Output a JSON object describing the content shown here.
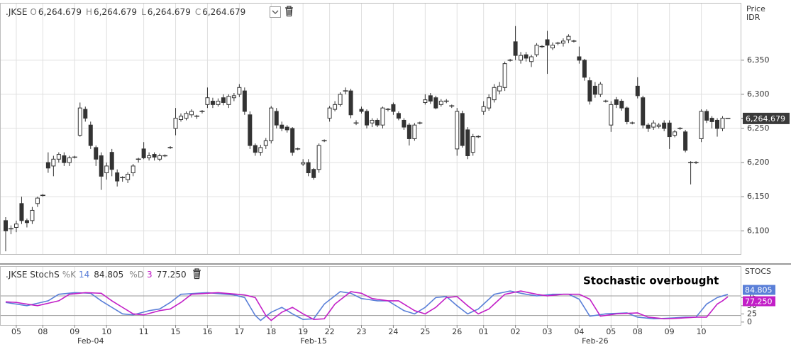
{
  "chart_data": [
    {
      "type": "candlestick",
      "header": {
        "symbol": ".JKSE",
        "fields": [
          {
            "key": "O",
            "value": "6,264.679"
          },
          {
            "key": "H",
            "value": "6,264.679"
          },
          {
            "key": "L",
            "value": "6,264.679"
          },
          {
            "key": "C",
            "value": "6,264.679"
          }
        ]
      },
      "y_axis_title": [
        "Price",
        "IDR"
      ],
      "categories": [
        null,
        null,
        "05",
        null,
        null,
        null,
        null,
        "08",
        null,
        null,
        null,
        null,
        null,
        "09",
        null,
        null,
        null,
        null,
        null,
        "10",
        null,
        null,
        null,
        null,
        null,
        null,
        "11",
        null,
        null,
        null,
        null,
        null,
        "15",
        null,
        null,
        null,
        null,
        null,
        "16",
        null,
        null,
        null,
        null,
        null,
        "17",
        null,
        null,
        null,
        null,
        null,
        "18",
        null,
        null,
        null,
        null,
        null,
        "19",
        null,
        null,
        null,
        null,
        "22",
        null,
        null,
        null,
        null,
        null,
        "23",
        null,
        null,
        null,
        null,
        null,
        "24",
        null,
        null,
        null,
        null,
        null,
        "25",
        null,
        null,
        null,
        null,
        null,
        "26",
        null,
        null,
        null,
        null,
        "01",
        null,
        null,
        null,
        null,
        null,
        "02",
        null,
        null,
        null,
        null,
        null,
        "03",
        null,
        null,
        null,
        null,
        null,
        "04",
        null,
        null,
        null,
        null,
        null,
        "05",
        null,
        null,
        null,
        null,
        "08",
        null,
        null,
        null,
        null,
        null,
        "09",
        null,
        null,
        null,
        null,
        null,
        "10",
        null,
        null,
        null,
        null,
        null
      ],
      "month_categories": [
        null,
        null,
        null,
        null,
        null,
        null,
        null,
        null,
        null,
        null,
        null,
        null,
        null,
        null,
        null,
        null,
        "Feb-04",
        null,
        null,
        null,
        null,
        null,
        null,
        null,
        null,
        null,
        null,
        null,
        null,
        null,
        null,
        null,
        null,
        null,
        null,
        null,
        null,
        null,
        null,
        null,
        null,
        null,
        null,
        null,
        null,
        null,
        null,
        null,
        null,
        null,
        null,
        null,
        null,
        null,
        null,
        null,
        null,
        null,
        "Feb-15",
        null,
        null,
        null,
        null,
        null,
        null,
        null,
        null,
        null,
        null,
        null,
        null,
        null,
        null,
        null,
        null,
        null,
        null,
        null,
        null,
        null,
        null,
        null,
        null,
        null,
        null,
        null,
        null,
        null,
        null,
        null,
        null,
        null,
        null,
        null,
        null,
        null,
        null,
        null,
        null,
        null,
        null,
        null,
        null,
        null,
        null,
        null,
        null,
        null,
        null,
        null,
        null,
        "Feb-26",
        null,
        null,
        null,
        null,
        null,
        null,
        null,
        null,
        null,
        null,
        null,
        null,
        null,
        null,
        null,
        null,
        null,
        null,
        null,
        null,
        null,
        null,
        null,
        null,
        null
      ],
      "open": [
        6115,
        6103,
        6105,
        6140,
        6115,
        6115,
        6140,
        6152,
        6200,
        6195,
        6205,
        6210,
        6200,
        6208,
        6240,
        6278,
        6255,
        6222,
        6210,
        6185,
        6215,
        6185,
        6178,
        6175,
        6185,
        6205,
        6220,
        6207,
        6212,
        6205,
        6210,
        6222,
        6250,
        6263,
        6265,
        6270,
        6268,
        6275,
        6285,
        6290,
        6285,
        6295,
        6285,
        6295,
        6300,
        6305,
        6270,
        6225,
        6215,
        6225,
        6232,
        6275,
        6255,
        6252,
        6250,
        6220,
        6198,
        6200,
        6190,
        6190,
        6232,
        6265,
        6278,
        6285,
        6305,
        6305,
        6258,
        6278,
        6275,
        6258,
        6262,
        6255,
        6278,
        6285,
        6272,
        6262,
        6255,
        6235,
        6258,
        6288,
        6298,
        6295,
        6285,
        6290,
        6283,
        6220,
        6272,
        6248,
        6215,
        6238,
        6275,
        6280,
        6292,
        6305,
        6310,
        6350,
        6377,
        6350,
        6358,
        6348,
        6358,
        6370,
        6380,
        6368,
        6375,
        6375,
        6380,
        6378,
        6355,
        6350,
        6320,
        6312,
        6300,
        6290,
        6255,
        6292,
        6290,
        6280,
        6258,
        6312,
        6295,
        6255,
        6252,
        6253,
        6258,
        6258,
        6240,
        6250,
        6245,
        6200,
        6200,
        6235,
        6275,
        6265,
        6262,
        6250,
        6264.679
      ],
      "high": [
        6120,
        6108,
        6115,
        6150,
        6118,
        6135,
        6150,
        6154,
        6215,
        6210,
        6215,
        6215,
        6210,
        6210,
        6288,
        6282,
        6260,
        6225,
        6215,
        6200,
        6220,
        6190,
        6180,
        6186,
        6198,
        6207,
        6230,
        6215,
        6215,
        6213,
        6212,
        6224,
        6280,
        6272,
        6275,
        6278,
        6270,
        6277,
        6310,
        6295,
        6294,
        6300,
        6300,
        6302,
        6315,
        6310,
        6275,
        6228,
        6226,
        6236,
        6283,
        6280,
        6260,
        6255,
        6252,
        6222,
        6205,
        6205,
        6192,
        6228,
        6234,
        6283,
        6290,
        6303,
        6310,
        6308,
        6262,
        6282,
        6278,
        6265,
        6265,
        6282,
        6280,
        6288,
        6275,
        6265,
        6258,
        6258,
        6260,
        6300,
        6302,
        6298,
        6293,
        6293,
        6285,
        6280,
        6276,
        6252,
        6242,
        6240,
        6290,
        6300,
        6315,
        6318,
        6348,
        6352,
        6400,
        6362,
        6362,
        6358,
        6375,
        6372,
        6393,
        6376,
        6377,
        6382,
        6388,
        6380,
        6370,
        6352,
        6325,
        6318,
        6318,
        6292,
        6290,
        6296,
        6293,
        6282,
        6260,
        6325,
        6298,
        6258,
        6262,
        6258,
        6262,
        6262,
        6248,
        6252,
        6248,
        6202,
        6202,
        6278,
        6278,
        6268,
        6265,
        6268,
        6264.679
      ],
      "low": [
        6070,
        6095,
        6098,
        6110,
        6105,
        6110,
        6135,
        6150,
        6185,
        6180,
        6200,
        6195,
        6195,
        6206,
        6238,
        6260,
        6220,
        6195,
        6160,
        6175,
        6180,
        6165,
        6172,
        6170,
        6180,
        6200,
        6205,
        6203,
        6203,
        6202,
        6208,
        6220,
        6240,
        6260,
        6262,
        6266,
        6264,
        6272,
        6280,
        6280,
        6282,
        6284,
        6280,
        6290,
        6296,
        6270,
        6220,
        6210,
        6210,
        6220,
        6228,
        6250,
        6246,
        6244,
        6210,
        6218,
        6195,
        6180,
        6175,
        6185,
        6230,
        6260,
        6275,
        6282,
        6300,
        6265,
        6255,
        6272,
        6250,
        6252,
        6252,
        6250,
        6275,
        6270,
        6262,
        6248,
        6225,
        6232,
        6256,
        6285,
        6286,
        6278,
        6282,
        6287,
        6280,
        6210,
        6222,
        6205,
        6210,
        6236,
        6270,
        6276,
        6288,
        6300,
        6305,
        6348,
        6350,
        6345,
        6348,
        6340,
        6355,
        6368,
        6330,
        6365,
        6372,
        6370,
        6375,
        6376,
        6345,
        6320,
        6285,
        6295,
        6296,
        6288,
        6245,
        6280,
        6276,
        6256,
        6256,
        6294,
        6250,
        6245,
        6248,
        6250,
        6246,
        6220,
        6237,
        6248,
        6215,
        6168,
        6198,
        6230,
        6258,
        6250,
        6238,
        6246,
        6264.679
      ],
      "close": [
        6100,
        6103,
        6110,
        6115,
        6112,
        6130,
        6148,
        6152,
        6192,
        6205,
        6212,
        6200,
        6207,
        6208,
        6280,
        6265,
        6225,
        6205,
        6180,
        6195,
        6190,
        6173,
        6178,
        6183,
        6195,
        6205,
        6207,
        6210,
        6208,
        6210,
        6210,
        6222,
        6265,
        6268,
        6272,
        6275,
        6268,
        6275,
        6295,
        6285,
        6290,
        6288,
        6297,
        6298,
        6310,
        6275,
        6225,
        6215,
        6222,
        6232,
        6280,
        6255,
        6250,
        6248,
        6215,
        6220,
        6200,
        6185,
        6178,
        6225,
        6232,
        6280,
        6285,
        6300,
        6305,
        6270,
        6258,
        6275,
        6255,
        6262,
        6255,
        6280,
        6278,
        6275,
        6265,
        6252,
        6235,
        6255,
        6258,
        6292,
        6290,
        6280,
        6290,
        6290,
        6283,
        6275,
        6225,
        6210,
        6238,
        6238,
        6282,
        6295,
        6310,
        6312,
        6345,
        6350,
        6357,
        6357,
        6353,
        6355,
        6372,
        6370,
        6372,
        6372,
        6375,
        6378,
        6385,
        6378,
        6350,
        6325,
        6290,
        6300,
        6315,
        6290,
        6285,
        6285,
        6280,
        6260,
        6258,
        6298,
        6255,
        6250,
        6258,
        6255,
        6250,
        6238,
        6245,
        6250,
        6218,
        6200,
        6200,
        6275,
        6262,
        6260,
        6250,
        6265,
        6264.679
      ],
      "up_color": "#ffffff",
      "down_color": "#333333",
      "wick_color": "#333333",
      "ylim": [
        6066,
        6433
      ],
      "yticks": [
        {
          "value": 6100,
          "label": "6,100"
        },
        {
          "value": 6150,
          "label": "6,150"
        },
        {
          "value": 6200,
          "label": "6,200"
        },
        {
          "value": 6250,
          "label": "6,250"
        },
        {
          "value": 6300,
          "label": "6,300"
        },
        {
          "value": 6350,
          "label": "6,350"
        }
      ],
      "last_price": {
        "value": 6264.679,
        "label": "6,264.679"
      },
      "grid": true
    },
    {
      "type": "line",
      "indicator": ".JKSE StochS",
      "k_period": 14,
      "d_period": 3,
      "y_axis_title": "STOCS",
      "annotation": "Stochastic overbought",
      "series": [
        {
          "name": "%K",
          "color": "#5a7fd8",
          "values": [
            60,
            57.5,
            55,
            52.5,
            50,
            53.8,
            57.5,
            61.3,
            65,
            75,
            85,
            86.7,
            88.3,
            90,
            89.3,
            88.7,
            88,
            76.5,
            65,
            55,
            45,
            35,
            25,
            23.5,
            22,
            26.3,
            30.7,
            35,
            37.5,
            40,
            50,
            60,
            72.5,
            85,
            86,
            87,
            88,
            89,
            90,
            88.6,
            87.2,
            85.8,
            84.4,
            83,
            79,
            75,
            47.5,
            20,
            5,
            17.5,
            30,
            37.5,
            45,
            35,
            25,
            16.5,
            8,
            9,
            10,
            32.5,
            55,
            67.7,
            80.3,
            93,
            90.5,
            88,
            80,
            72,
            69.7,
            67.3,
            65,
            65,
            65,
            55,
            45,
            35,
            30,
            25,
            35,
            45,
            60,
            75,
            76.5,
            78,
            64,
            50,
            37.5,
            25,
            32.5,
            40,
            55,
            70,
            85,
            88.3,
            91.7,
            95,
            91.7,
            88.3,
            85,
            82.5,
            80,
            81.7,
            83.3,
            85,
            85,
            85,
            85,
            77.5,
            70,
            44,
            18,
            20.3,
            22.7,
            25,
            25.8,
            26.5,
            27.3,
            28,
            21.5,
            15,
            13.3,
            11.7,
            10,
            10.7,
            11.3,
            12,
            13,
            14,
            15,
            15,
            15,
            35,
            55,
            65,
            75,
            79.9,
            84.805
          ]
        },
        {
          "name": "%D",
          "color": "#c21fc7",
          "last_label": "77.250",
          "values": [
            62,
            61,
            60,
            57.5,
            55,
            52.5,
            50,
            53.8,
            57.5,
            61.3,
            65,
            75,
            85,
            86.7,
            88.3,
            90,
            89.3,
            88.7,
            88,
            76.5,
            65,
            55,
            45,
            35,
            25,
            23.5,
            22,
            26.3,
            30.7,
            35,
            37.5,
            40,
            50,
            60,
            72.5,
            85,
            86,
            87,
            88,
            89,
            90,
            88.6,
            87.2,
            85.8,
            84.4,
            83,
            79,
            75,
            47.5,
            20,
            5,
            17.5,
            30,
            37.5,
            45,
            35,
            25,
            16.5,
            8,
            9,
            10,
            32.5,
            55,
            67.7,
            80.3,
            93,
            90.5,
            88,
            80,
            72,
            69.7,
            67.3,
            65,
            65,
            65,
            55,
            45,
            35,
            30,
            25,
            35,
            45,
            60,
            75,
            76.5,
            78,
            64,
            50,
            37.5,
            25,
            32.5,
            40,
            55,
            70,
            85,
            88.3,
            91.7,
            95,
            91.7,
            88.3,
            85,
            82.5,
            80,
            81.7,
            83.3,
            85,
            85,
            85,
            85,
            77.5,
            70,
            44,
            18,
            20.3,
            22.7,
            25,
            25.8,
            26.5,
            27.3,
            28,
            21.5,
            15,
            13.3,
            11.7,
            10,
            10.7,
            11.3,
            12,
            13,
            14,
            15,
            15,
            15,
            35,
            55,
            65,
            77.25
          ]
        }
      ],
      "levels": [
        20,
        80
      ],
      "ylim": [
        -9,
        169
      ],
      "yticks": [
        0,
        25,
        50,
        75
      ],
      "grid": true
    }
  ]
}
